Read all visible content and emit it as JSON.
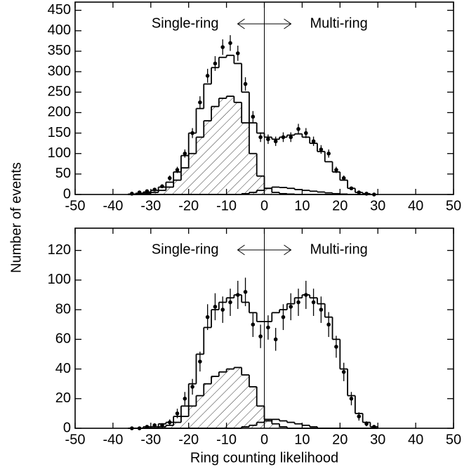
{
  "chart_data": [
    {
      "type": "histogram",
      "y_label": "Number of events",
      "annotations": [
        "Single-ring",
        "Multi-ring"
      ],
      "divider_x": 0,
      "xlim": [
        -50,
        50
      ],
      "xticks": [
        -50,
        -40,
        -30,
        -20,
        -10,
        0,
        10,
        20,
        30,
        40,
        50
      ],
      "ylim": [
        0,
        470
      ],
      "yticks": [
        0,
        50,
        100,
        150,
        200,
        250,
        300,
        350,
        400,
        450
      ],
      "bins": [
        -36,
        -34,
        -32,
        -30,
        -28,
        -26,
        -24,
        -22,
        -20,
        -18,
        -16,
        -14,
        -12,
        -10,
        -8,
        -6,
        -4,
        -2,
        0,
        2,
        4,
        6,
        8,
        10,
        12,
        14,
        16,
        18,
        20,
        22,
        24,
        26,
        28,
        30
      ],
      "series": [
        {
          "color": "#000000",
          "hatch": false,
          "values": [
            1,
            3,
            6,
            10,
            18,
            30,
            55,
            95,
            150,
            210,
            270,
            310,
            335,
            340,
            320,
            250,
            175,
            150,
            140,
            135,
            140,
            145,
            148,
            140,
            125,
            105,
            80,
            55,
            35,
            15,
            5,
            2,
            0
          ]
        },
        {
          "color": "#000000",
          "hatch": true,
          "values": [
            0,
            1,
            3,
            5,
            10,
            18,
            35,
            65,
            100,
            140,
            180,
            215,
            235,
            240,
            225,
            175,
            100,
            45,
            15,
            5,
            2,
            1,
            0,
            0,
            0,
            0,
            0,
            0,
            0,
            0,
            0,
            0,
            0
          ]
        },
        {
          "color": "#000000",
          "hatch": false,
          "values": [
            0,
            0,
            0,
            0,
            0,
            0,
            0,
            0,
            0,
            0,
            0,
            0,
            0,
            0,
            0,
            2,
            5,
            10,
            15,
            18,
            17,
            15,
            12,
            10,
            8,
            6,
            4,
            2,
            1,
            0,
            0,
            0,
            0
          ]
        }
      ],
      "points": {
        "color": "#000000",
        "x": [
          -35,
          -33,
          -31,
          -29,
          -27,
          -25,
          -23,
          -21,
          -19,
          -17,
          -15,
          -13,
          -11,
          -9,
          -7,
          -5,
          -3,
          -1,
          1,
          3,
          5,
          7,
          9,
          11,
          13,
          15,
          17,
          19,
          21,
          23,
          25,
          27,
          29
        ],
        "values": [
          2,
          5,
          8,
          12,
          20,
          40,
          60,
          100,
          150,
          225,
          290,
          320,
          360,
          370,
          345,
          270,
          190,
          140,
          135,
          130,
          140,
          140,
          160,
          150,
          130,
          110,
          100,
          60,
          40,
          15,
          5,
          2,
          0
        ],
        "errors": [
          1.4,
          2.2,
          2.8,
          3.5,
          4.5,
          6.3,
          7.7,
          10,
          12.2,
          15,
          17,
          17.9,
          19,
          19.2,
          18.6,
          16.4,
          13.8,
          11.8,
          11.6,
          11.4,
          11.8,
          11.8,
          12.6,
          12.2,
          11.4,
          10.5,
          10,
          7.7,
          6.3,
          3.9,
          2.2,
          1.4,
          0
        ]
      }
    },
    {
      "type": "histogram",
      "x_label": "Ring counting likelihood",
      "annotations": [
        "Single-ring",
        "Multi-ring"
      ],
      "divider_x": 0,
      "xlim": [
        -50,
        50
      ],
      "xticks": [
        -50,
        -40,
        -30,
        -20,
        -10,
        0,
        10,
        20,
        30,
        40,
        50
      ],
      "ylim": [
        0,
        135
      ],
      "yticks": [
        0,
        20,
        40,
        60,
        80,
        100,
        120
      ],
      "bins": [
        -36,
        -34,
        -32,
        -30,
        -28,
        -26,
        -24,
        -22,
        -20,
        -18,
        -16,
        -14,
        -12,
        -10,
        -8,
        -6,
        -4,
        -2,
        0,
        2,
        4,
        6,
        8,
        10,
        12,
        14,
        16,
        18,
        20,
        22,
        24,
        26,
        28,
        30
      ],
      "series": [
        {
          "color": "#000000",
          "hatch": false,
          "values": [
            0,
            0,
            1,
            1,
            3,
            4,
            8,
            15,
            30,
            50,
            68,
            80,
            85,
            88,
            90,
            85,
            78,
            72,
            72,
            78,
            80,
            84,
            88,
            90,
            88,
            84,
            75,
            60,
            40,
            22,
            10,
            4,
            1
          ]
        },
        {
          "color": "#000000",
          "hatch": true,
          "values": [
            0,
            0,
            0,
            0,
            1,
            2,
            4,
            8,
            15,
            22,
            30,
            35,
            38,
            40,
            41,
            36,
            28,
            15,
            6,
            3,
            1,
            0,
            0,
            0,
            0,
            0,
            0,
            0,
            0,
            0,
            0,
            0,
            0
          ]
        },
        {
          "color": "#000000",
          "hatch": false,
          "values": [
            0,
            0,
            0,
            0,
            0,
            0,
            0,
            0,
            0,
            0,
            0,
            0,
            0,
            0,
            0,
            1,
            2,
            4,
            5,
            6,
            5,
            4,
            3,
            2,
            1,
            0,
            0,
            0,
            0,
            0,
            0,
            0,
            0
          ]
        }
      ],
      "points": {
        "color": "#000000",
        "x": [
          -35,
          -33,
          -31,
          -29,
          -27,
          -25,
          -23,
          -21,
          -19,
          -17,
          -15,
          -13,
          -11,
          -9,
          -7,
          -5,
          -3,
          -1,
          1,
          3,
          5,
          7,
          9,
          11,
          13,
          15,
          17,
          19,
          21,
          23,
          25,
          27,
          29
        ],
        "values": [
          0,
          0,
          1,
          2,
          2,
          4,
          10,
          20,
          28,
          45,
          75,
          82,
          80,
          85,
          90,
          92,
          70,
          62,
          68,
          60,
          75,
          82,
          85,
          90,
          85,
          80,
          70,
          55,
          38,
          20,
          8,
          3,
          1
        ],
        "errors": [
          0,
          0,
          1,
          1.4,
          1.4,
          2,
          3.2,
          4.5,
          5.3,
          6.7,
          8.7,
          9.1,
          8.9,
          9.2,
          9.5,
          9.6,
          8.4,
          7.9,
          8.2,
          7.7,
          8.7,
          9.1,
          9.2,
          9.5,
          9.2,
          8.9,
          8.4,
          7.4,
          6.2,
          4.5,
          2.8,
          1.7,
          1
        ]
      }
    }
  ]
}
